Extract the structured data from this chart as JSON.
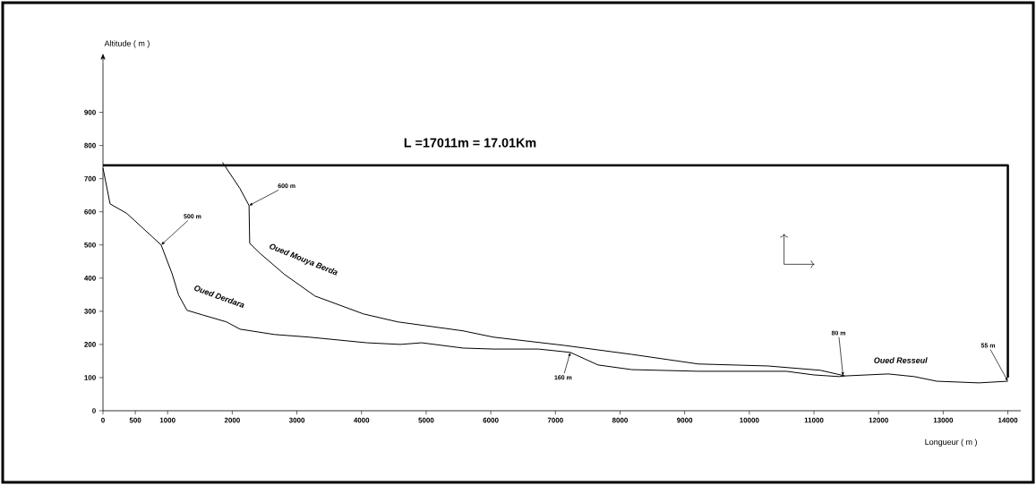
{
  "chart_data": {
    "type": "line",
    "xlabel": "Longueur ( m )",
    "ylabel": "Altitude ( m )",
    "annotations": [
      "L =17011m = 17.01Km",
      "Oued Resseul",
      {
        "text": "500 m",
        "x": 900,
        "y": 500
      },
      {
        "text": "600 m",
        "x": 2260,
        "y": 619
      },
      {
        "text": "160 m",
        "x": 7230,
        "y": 176
      },
      {
        "text": "80 m",
        "x": 11450,
        "y": 105
      },
      {
        "text": "55 m",
        "x": 14000,
        "y": 89
      }
    ],
    "series": [
      {
        "name": "Oued Derdara",
        "color": "#000000",
        "x": [
          0,
          110,
          370,
          750,
          900,
          1070,
          1170,
          1300,
          1540,
          1910,
          2120,
          2650,
          3190,
          4080,
          4600,
          4930,
          5570,
          6040,
          6740,
          7230,
          7660,
          8180,
          9210,
          10570,
          11000,
          11390,
          11480,
          12150,
          12550,
          12900,
          13550,
          14000
        ],
        "values": [
          732,
          624,
          595,
          527,
          500,
          413,
          349,
          303,
          289,
          268,
          246,
          230,
          222,
          205,
          200,
          205,
          189,
          186,
          186,
          176,
          138,
          124,
          119,
          119,
          108,
          103,
          105,
          111,
          103,
          89,
          84,
          89
        ]
      },
      {
        "name": "Oued Mouya Berda",
        "color": "#000000",
        "x": [
          1850,
          2120,
          2260,
          2270,
          2440,
          2810,
          3280,
          4030,
          4560,
          5570,
          6040,
          7140,
          8180,
          9210,
          10290,
          11100,
          11480
        ],
        "values": [
          749,
          670,
          619,
          505,
          473,
          411,
          346,
          292,
          268,
          241,
          222,
          197,
          170,
          141,
          135,
          122,
          105
        ]
      },
      {
        "color": "#000000",
        "x": [
          0,
          14000,
          14000
        ],
        "values": [
          740,
          740,
          100
        ]
      }
    ],
    "xlim": [
      0,
      14200
    ],
    "ylim": [
      0,
      1050
    ],
    "xticks": [
      0,
      500,
      1000,
      2000,
      3000,
      4000,
      5000,
      6000,
      7000,
      8000,
      9000,
      10000,
      11000,
      12000,
      13000,
      14000
    ],
    "yticks": [
      0,
      100,
      200,
      300,
      400,
      500,
      600,
      700,
      800,
      900
    ],
    "grid": false,
    "legend": false,
    "marker": "none",
    "line_style": "solid"
  }
}
